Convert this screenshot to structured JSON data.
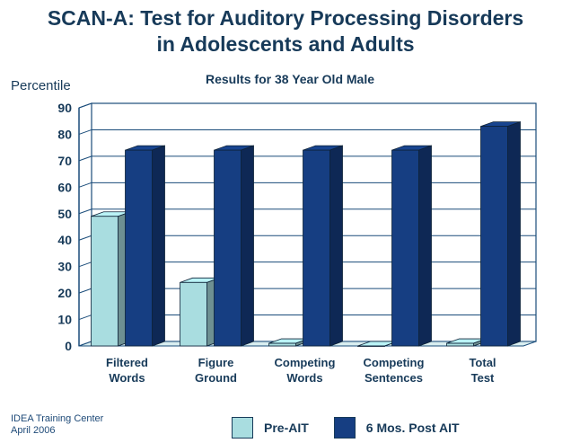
{
  "title_line1": "SCAN-A: Test for Auditory Processing Disorders",
  "title_line2": "in Adolescents and Adults",
  "footer": {
    "line1": "IDEA Training Center",
    "line2": "April 2006"
  },
  "colors": {
    "pre": "#a9dde0",
    "post": "#163e82",
    "grid": "#1a4c7a",
    "text": "#173a59"
  },
  "chart_data": {
    "type": "bar",
    "title": "Results for 38 Year Old Male",
    "ylabel": "Percentile",
    "xlabel": "",
    "ylim": [
      0,
      90
    ],
    "yticks": [
      0,
      10,
      20,
      30,
      40,
      50,
      60,
      70,
      80,
      90
    ],
    "categories": [
      [
        "Filtered",
        "Words"
      ],
      [
        "Figure",
        "Ground"
      ],
      [
        "Competing",
        "Words"
      ],
      [
        "Competing",
        "Sentences"
      ],
      [
        "Total",
        "Test"
      ]
    ],
    "series": [
      {
        "name": "Pre-AIT",
        "values": [
          49,
          24,
          1,
          0,
          1
        ]
      },
      {
        "name": "6 Mos. Post AIT",
        "values": [
          74,
          74,
          74,
          74,
          83
        ]
      }
    ],
    "grid": true,
    "legend_position": "bottom"
  }
}
